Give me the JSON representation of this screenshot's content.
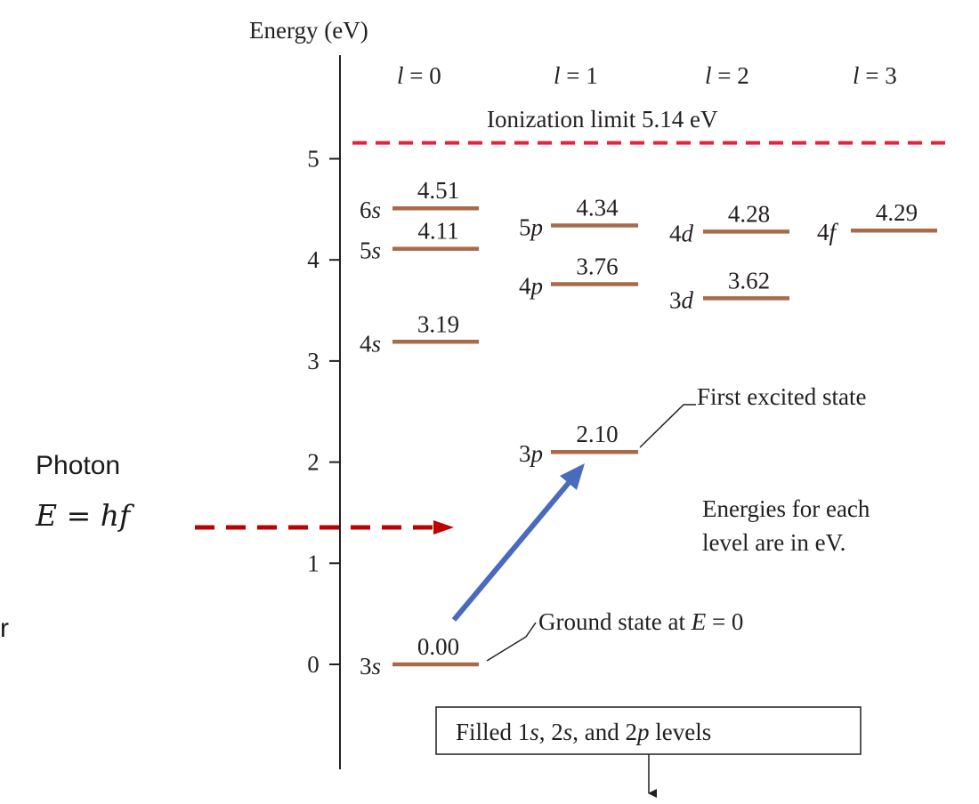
{
  "diagram": {
    "axis_title": "Energy (eV)",
    "y_ticks": [
      "0",
      "1",
      "2",
      "3",
      "4",
      "5"
    ],
    "column_headers": [
      {
        "var": "l",
        "rest": " = 0"
      },
      {
        "var": "l",
        "rest": " = 1"
      },
      {
        "var": "l",
        "rest": " = 2"
      },
      {
        "var": "l",
        "rest": " = 3"
      }
    ],
    "ionization_label": "Ionization limit 5.14 eV",
    "ionization_energy": 5.14,
    "levels": [
      {
        "n": "3",
        "l": "s",
        "energy": 0.0,
        "value": "0.00"
      },
      {
        "n": "4",
        "l": "s",
        "energy": 3.19,
        "value": "3.19"
      },
      {
        "n": "5",
        "l": "s",
        "energy": 4.11,
        "value": "4.11"
      },
      {
        "n": "6",
        "l": "s",
        "energy": 4.51,
        "value": "4.51"
      },
      {
        "n": "3",
        "l": "p",
        "energy": 2.1,
        "value": "2.10"
      },
      {
        "n": "4",
        "l": "p",
        "energy": 3.76,
        "value": "3.76"
      },
      {
        "n": "5",
        "l": "p",
        "energy": 4.34,
        "value": "4.34"
      },
      {
        "n": "3",
        "l": "d",
        "energy": 3.62,
        "value": "3.62"
      },
      {
        "n": "4",
        "l": "d",
        "energy": 4.28,
        "value": "4.28"
      },
      {
        "n": "4",
        "l": "f",
        "energy": 4.29,
        "value": "4.29"
      }
    ],
    "first_excited_label": "First excited state",
    "ground_state_text": "Ground state at ",
    "ground_state_var": "E",
    "ground_state_rest": " = 0",
    "note_line1": "Energies for each",
    "note_line2": "level are in eV.",
    "filled_box": {
      "p1": "Filled 1",
      "s1": "s",
      "p2": ", 2",
      "s2": "s",
      "p3": ", and 2",
      "s3": "p",
      "p4": " levels"
    },
    "photon_label": "Photon",
    "photon_eq": "E = hf",
    "cropped_char": "r",
    "colors": {
      "level_line": "#a86b4a",
      "ionization_line": "#e8203a",
      "photon_arrow": "#c00000",
      "transition_arrow": "#4a6bbd",
      "note_text": "#2a9fd6"
    }
  }
}
